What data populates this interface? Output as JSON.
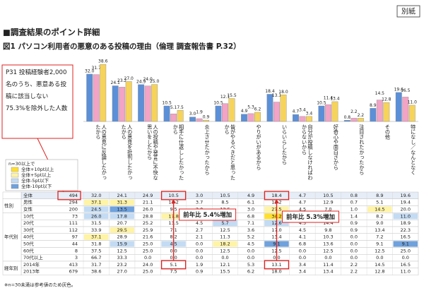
{
  "header": {
    "title": "■調査結果のポイント詳細",
    "figure_title": "図1 パソコン利用者の悪意のある投稿の理由（倫理 調査報告書 P.32）",
    "tag": "別紙"
  },
  "note": "P31 投稿経験者2,000名のうち、悪意ある投稿に該当しない 75.3%を除外した人数",
  "chart_data": {
    "type": "bar",
    "categories": [
      "人の意見に反論したかったから",
      "人の意見を批判したかったから",
      "人の投稿や発言に不快な思いをしたから",
      "相手に仕返ししたかったから",
      "炎上させたかったから",
      "皆がやるべきだと思ったから",
      "やりがいがあるから",
      "いらいらしたから",
      "自分が投稿しなければわからないから",
      "好奇心や面白さから",
      "注目されたかったから",
      "その他",
      "特になし／なんとなく"
    ],
    "series": [
      {
        "color": "#5b8fd8",
        "values": [
          32.0,
          24.1,
          24.9,
          10.5,
          3.0,
          10.5,
          4.9,
          18.4,
          4.7,
          10.5,
          0.8,
          8.9,
          19.6
        ],
        "value_labels": [
          "32.0",
          "24.1",
          "24.9",
          "10.5",
          "3.0",
          "10.5",
          "4.9",
          "18.4",
          "4.7",
          "10.5",
          "0.8",
          "8.9",
          "19.6"
        ]
      },
      {
        "color": "#f2a3c6",
        "values": [
          31.7,
          23.2,
          24.0,
          5.1,
          1.9,
          12.1,
          5.3,
          13.1,
          3.4,
          11.4,
          2.2,
          14.5,
          16.5
        ],
        "value_labels": [
          "31.7",
          "23.2",
          "24.0",
          "5.1",
          "1.9",
          "12.1",
          "5.3",
          "13.1",
          "3.4",
          "11.4",
          "2.2",
          "14.5",
          "16.5"
        ]
      },
      {
        "color": "#f6d35a",
        "values": [
          38.6,
          27.0,
          25.0,
          7.5,
          0.9,
          15.5,
          6.2,
          18.0,
          3.4,
          13.4,
          2.2,
          12.8,
          11.0
        ],
        "value_labels": [
          "38.6",
          "27.0",
          "25.0",
          "7.5",
          "0.9",
          "15.5",
          "6.2",
          "18.0",
          "3.4",
          "13.4",
          "2.2",
          "12.8",
          "11.0"
        ]
      }
    ],
    "ylim": [
      0,
      42
    ]
  },
  "legend": {
    "title": "n=30以上で",
    "items": [
      {
        "label": "全体+10pt以上",
        "color": "#ffdf2e"
      },
      {
        "label": "全体+5pt以上",
        "color": "#fff3a6"
      },
      {
        "label": "全体-5pt以下",
        "color": "#c3dbf3"
      },
      {
        "label": "全体-10pt以下",
        "color": "#6fa1dc"
      }
    ]
  },
  "table": {
    "sections": [
      {
        "rows": [
          {
            "label": "全体",
            "n": "494",
            "cells": [
              "32.0",
              "24.1",
              "24.9",
              "10.5",
              "3.0",
              "10.5",
              "4.9",
              "18.4",
              "4.7",
              "10.5",
              "0.8",
              "8.9",
              "19.6"
            ]
          }
        ]
      },
      {
        "label": "性別",
        "rows": [
          {
            "label": "男性",
            "n": "294",
            "cells": [
              "37.1",
              "31.3",
              "21.1",
              "11.2",
              "3.7",
              "8.5",
              "6.1",
              "12.2",
              "4.7",
              "12.9",
              "0.7",
              "5.1",
              "19.4"
            ],
            "highlight": {
              "0": 1,
              "1": 1
            }
          },
          {
            "label": "女性",
            "n": "200",
            "cells": [
              "24.5",
              "13.5",
              "26.0",
              "9.5",
              "2.0",
              "13.5",
              "3.0",
              "27.5",
              "4.5",
              "7.0",
              "1.0",
              "14.5",
              "20.0"
            ],
            "highlight": {
              "0": 2,
              "1": 3,
              "7": 1,
              "11": 1
            }
          }
        ]
      },
      {
        "label": "年代別",
        "rows": [
          {
            "label": "10代",
            "n": "73",
            "cells": [
              "26.0",
              "17.8",
              "28.8",
              "17.8",
              "4.1",
              "11.0",
              "6.8",
              "34.2",
              "5.5",
              "9.6",
              "1.4",
              "8.2",
              "11.0"
            ],
            "highlight": {
              "0": 2,
              "1": 2,
              "3": 1,
              "7": 0,
              "12": 2
            }
          },
          {
            "label": "20代",
            "n": "111",
            "cells": [
              "31.5",
              "20.7",
              "25.2",
              "13.5",
              "4.5",
              "5.7",
              "7.1",
              "12.6",
              "4.5",
              "14.4",
              "0.9",
              "9.0",
              "18.9"
            ],
            "highlight": {
              "5": 2,
              "7": 2
            }
          },
          {
            "label": "30代",
            "n": "112",
            "cells": [
              "33.9",
              "29.5",
              "25.9",
              "7.1",
              "2.7",
              "12.5",
              "3.6",
              "17.0",
              "4.5",
              "9.8",
              "0.9",
              "13.4",
              "22.3"
            ],
            "highlight": {
              "1": 1
            }
          },
          {
            "label": "40代",
            "n": "97",
            "cells": [
              "37.1",
              "28.9",
              "21.6",
              "8.2",
              "2.1",
              "11.3",
              "5.2",
              "13.4",
              "4.1",
              "10.3",
              "0.0",
              "7.2",
              "16.5"
            ],
            "highlight": {
              "0": 1
            }
          },
          {
            "label": "50代",
            "n": "44",
            "cells": [
              "31.8",
              "15.9",
              "25.0",
              "4.5",
              "0.0",
              "18.2",
              "4.5",
              "9.1",
              "6.8",
              "13.6",
              "0.0",
              "9.1",
              "9.1"
            ],
            "highlight": {
              "1": 2,
              "3": 2,
              "5": 1,
              "7": 3,
              "12": 3
            }
          },
          {
            "label": "60代",
            "n": "8",
            "cells": [
              "37.5",
              "12.5",
              "25.0",
              "0.0",
              "0.0",
              "12.5",
              "0.0",
              "12.5",
              "0.0",
              "12.5",
              "0.0",
              "12.5",
              "25.0"
            ],
            "muted": true
          },
          {
            "label": "70代以上",
            "n": "3",
            "cells": [
              "66.7",
              "33.3",
              "0.0",
              "0.0",
              "0.0",
              "0.0",
              "0.0",
              "0.0",
              "0.0",
              "0.0",
              "0.0",
              "0.0",
              "0.0"
            ],
            "muted": true
          }
        ]
      },
      {
        "label": "経年別",
        "rows": [
          {
            "label": "2014年",
            "n": "413",
            "cells": [
              "31.7",
              "23.2",
              "24.0",
              "5.1",
              "1.9",
              "12.1",
              "5.3",
              "13.1",
              "3.4",
              "11.4",
              "2.2",
              "14.5",
              "16.5"
            ]
          },
          {
            "label": "2013年",
            "n": "679",
            "cells": [
              "38.6",
              "27.0",
              "25.0",
              "7.5",
              "0.9",
              "15.5",
              "6.2",
              "18.0",
              "3.4",
              "13.4",
              "2.2",
              "12.8",
              "11.0"
            ]
          }
        ]
      }
    ]
  },
  "callouts": [
    "前年比 5.4%増加",
    "前年比 5.3%増加"
  ],
  "footnote": "※n=30未満は参考値のため灰色。"
}
